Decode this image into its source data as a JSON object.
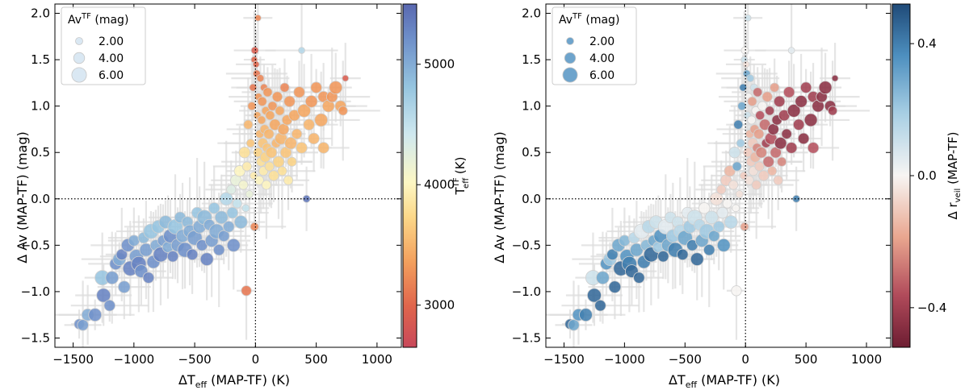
{
  "chart_data": [
    {
      "type": "scatter",
      "panel": "left",
      "xlabel": "ΔT",
      "xlabel_sub": "eff",
      "xlabel_tail": " (MAP-TF) (K)",
      "ylabel": "Δ Av (MAP-TF) (mag)",
      "xlim": [
        -1650,
        1200
      ],
      "ylim": [
        -1.6,
        2.1
      ],
      "xticks": [
        -1500,
        -1000,
        -500,
        0,
        500,
        1000
      ],
      "xtick_labels": [
        "−1500",
        "−1000",
        "−500",
        "0",
        "500",
        "1000"
      ],
      "yticks": [
        -1.5,
        -1.0,
        -0.5,
        0.0,
        0.5,
        1.0,
        1.5,
        2.0
      ],
      "ytick_labels": [
        "−1.5",
        "−1.0",
        "−0.5",
        "0.0",
        "0.5",
        "1.0",
        "1.5",
        "2.0"
      ],
      "reference_lines": {
        "x": 0,
        "y": 0,
        "style": "dotted"
      },
      "legend": {
        "title": "Av",
        "title_sup": "TF",
        "title_tail": " (mag)",
        "position": "upper-left",
        "entries": [
          {
            "label": "2.00",
            "av": 2
          },
          {
            "label": "4.00",
            "av": 4
          },
          {
            "label": "6.00",
            "av": 6
          }
        ]
      },
      "colorbar": {
        "label": "T",
        "label_sup": "TF",
        "label_sub": "eff",
        "label_tail": " (K)",
        "colormap": "RdYlBu",
        "range": [
          2650,
          5500
        ],
        "ticks": [
          3000,
          4000,
          5000
        ],
        "tick_labels": [
          "3000",
          "4000",
          "5000"
        ]
      },
      "color_variable": "Teff_TF",
      "point_color": "#d6e6f2",
      "error_bar_color": "#dcdcdc"
    },
    {
      "type": "scatter",
      "panel": "right",
      "xlabel": "ΔT",
      "xlabel_sub": "eff",
      "xlabel_tail": " (MAP-TF) (K)",
      "ylabel": "Δ Av (MAP-TF) (mag)",
      "xlim": [
        -1650,
        1200
      ],
      "ylim": [
        -1.6,
        2.1
      ],
      "xticks": [
        -1500,
        -1000,
        -500,
        0,
        500,
        1000
      ],
      "xtick_labels": [
        "−1500",
        "−1000",
        "−500",
        "0",
        "500",
        "1000"
      ],
      "yticks": [
        -1.5,
        -1.0,
        -0.5,
        0.0,
        0.5,
        1.0,
        1.5,
        2.0
      ],
      "ytick_labels": [
        "−1.5",
        "−1.0",
        "−0.5",
        "0.0",
        "0.5",
        "1.0",
        "1.5",
        "2.0"
      ],
      "reference_lines": {
        "x": 0,
        "y": 0,
        "style": "dotted"
      },
      "legend": {
        "title": "Av",
        "title_sup": "TF",
        "title_tail": " (mag)",
        "position": "upper-left",
        "entries": [
          {
            "label": "2.00",
            "av": 2
          },
          {
            "label": "4.00",
            "av": 4
          },
          {
            "label": "6.00",
            "av": 6
          }
        ]
      },
      "colorbar": {
        "label": "Δ r",
        "label_sub": "veil",
        "label_tail": " (MAP-TF)",
        "colormap": "RdBu",
        "range": [
          -0.52,
          0.52
        ],
        "ticks": [
          -0.4,
          0.0,
          0.4
        ],
        "tick_labels": [
          "−0.4",
          "0.0",
          "0.4"
        ]
      },
      "color_variable": "delta_r_veil",
      "point_color": "#5e9ac7",
      "error_bar_color": "#dcdcdc"
    }
  ],
  "points": [
    {
      "dT": -1450,
      "dAv": -1.35,
      "av": 3.5,
      "teff": 5200,
      "dr": 0.45
    },
    {
      "dT": -1420,
      "dAv": -1.36,
      "av": 4.0,
      "teff": 5100,
      "dr": 0.3
    },
    {
      "dT": -1380,
      "dAv": -1.25,
      "av": 4.5,
      "teff": 5000,
      "dr": 0.35
    },
    {
      "dT": -1320,
      "dAv": -1.25,
      "av": 5.0,
      "teff": 5200,
      "dr": 0.4
    },
    {
      "dT": -1260,
      "dAv": -0.85,
      "av": 6.0,
      "teff": 4800,
      "dr": 0.1
    },
    {
      "dT": -1250,
      "dAv": -1.04,
      "av": 5.5,
      "teff": 5300,
      "dr": 0.45
    },
    {
      "dT": -1200,
      "dAv": -1.15,
      "av": 4.0,
      "teff": 5200,
      "dr": 0.45
    },
    {
      "dT": -1180,
      "dAv": -0.85,
      "av": 5.0,
      "teff": 5100,
      "dr": 0.3
    },
    {
      "dT": -1150,
      "dAv": -0.7,
      "av": 4.5,
      "teff": 5200,
      "dr": 0.35
    },
    {
      "dT": -1120,
      "dAv": -0.65,
      "av": 5.0,
      "teff": 5000,
      "dr": 0.2
    },
    {
      "dT": -1100,
      "dAv": -0.6,
      "av": 4.0,
      "teff": 5300,
      "dr": 0.4
    },
    {
      "dT": -1080,
      "dAv": -0.95,
      "av": 4.5,
      "teff": 5100,
      "dr": 0.45
    },
    {
      "dT": -1050,
      "dAv": -0.5,
      "av": 5.0,
      "teff": 5200,
      "dr": 0.3
    },
    {
      "dT": -1030,
      "dAv": -0.75,
      "av": 6.0,
      "teff": 5300,
      "dr": 0.45
    },
    {
      "dT": -1000,
      "dAv": -0.45,
      "av": 4.0,
      "teff": 5000,
      "dr": 0.25
    },
    {
      "dT": -980,
      "dAv": -0.62,
      "av": 5.5,
      "teff": 5100,
      "dr": 0.35
    },
    {
      "dT": -960,
      "dAv": -0.7,
      "av": 6.0,
      "teff": 5300,
      "dr": 0.4
    },
    {
      "dT": -940,
      "dAv": -0.78,
      "av": 5.0,
      "teff": 5200,
      "dr": 0.45
    },
    {
      "dT": -920,
      "dAv": -0.42,
      "av": 4.0,
      "teff": 4900,
      "dr": 0.15
    },
    {
      "dT": -900,
      "dAv": -0.55,
      "av": 5.0,
      "teff": 5100,
      "dr": 0.3
    },
    {
      "dT": -880,
      "dAv": -0.85,
      "av": 4.0,
      "teff": 5300,
      "dr": 0.45
    },
    {
      "dT": -860,
      "dAv": -0.35,
      "av": 6.0,
      "teff": 4800,
      "dr": 0.05
    },
    {
      "dT": -840,
      "dAv": -0.68,
      "av": 5.0,
      "teff": 5200,
      "dr": 0.4
    },
    {
      "dT": -820,
      "dAv": -0.5,
      "av": 4.0,
      "teff": 5000,
      "dr": 0.25
    },
    {
      "dT": -800,
      "dAv": -0.3,
      "av": 5.0,
      "teff": 4800,
      "dr": 0.15
    },
    {
      "dT": -780,
      "dAv": -0.6,
      "av": 6.0,
      "teff": 5300,
      "dr": 0.45
    },
    {
      "dT": -760,
      "dAv": -0.45,
      "av": 4.0,
      "teff": 5100,
      "dr": 0.3
    },
    {
      "dT": -740,
      "dAv": -0.25,
      "av": 5.0,
      "teff": 4900,
      "dr": 0.1
    },
    {
      "dT": -720,
      "dAv": -0.52,
      "av": 4.0,
      "teff": 5000,
      "dr": 0.2
    },
    {
      "dT": -700,
      "dAv": -0.4,
      "av": 5.5,
      "teff": 5200,
      "dr": 0.35
    },
    {
      "dT": -680,
      "dAv": -0.62,
      "av": 4.0,
      "teff": 5300,
      "dr": 0.45
    },
    {
      "dT": -660,
      "dAv": -0.3,
      "av": 6.0,
      "teff": 4800,
      "dr": 0.05
    },
    {
      "dT": -640,
      "dAv": -0.5,
      "av": 5.0,
      "teff": 5100,
      "dr": 0.3
    },
    {
      "dT": -620,
      "dAv": -0.2,
      "av": 4.0,
      "teff": 4900,
      "dr": 0.1
    },
    {
      "dT": -600,
      "dAv": -0.4,
      "av": 5.0,
      "teff": 5000,
      "dr": 0.2
    },
    {
      "dT": -580,
      "dAv": -0.55,
      "av": 6.0,
      "teff": 5200,
      "dr": 0.4
    },
    {
      "dT": -560,
      "dAv": -0.25,
      "av": 4.0,
      "teff": 4900,
      "dr": 0.1
    },
    {
      "dT": -540,
      "dAv": -0.35,
      "av": 5.0,
      "teff": 5000,
      "dr": 0.15
    },
    {
      "dT": -520,
      "dAv": -0.6,
      "av": 4.0,
      "teff": 5300,
      "dr": 0.45
    },
    {
      "dT": -500,
      "dAv": -0.42,
      "av": 6.0,
      "teff": 5100,
      "dr": 0.3
    },
    {
      "dT": -480,
      "dAv": -0.15,
      "av": 4.0,
      "teff": 4800,
      "dr": 0.05
    },
    {
      "dT": -460,
      "dAv": -0.3,
      "av": 5.0,
      "teff": 5000,
      "dr": 0.2
    },
    {
      "dT": -440,
      "dAv": -0.5,
      "av": 4.0,
      "teff": 5200,
      "dr": 0.4
    },
    {
      "dT": -420,
      "dAv": -0.2,
      "av": 6.0,
      "teff": 4900,
      "dr": 0.1
    },
    {
      "dT": -400,
      "dAv": -0.65,
      "av": 5.0,
      "teff": 5300,
      "dr": 0.45
    },
    {
      "dT": -380,
      "dAv": -0.28,
      "av": 4.0,
      "teff": 5000,
      "dr": 0.15
    },
    {
      "dT": -360,
      "dAv": -0.45,
      "av": 5.0,
      "teff": 5100,
      "dr": 0.3
    },
    {
      "dT": -340,
      "dAv": -0.1,
      "av": 4.0,
      "teff": 4800,
      "dr": 0.0
    },
    {
      "dT": -320,
      "dAv": -0.35,
      "av": 6.0,
      "teff": 5000,
      "dr": 0.2
    },
    {
      "dT": -300,
      "dAv": -0.55,
      "av": 4.0,
      "teff": 5200,
      "dr": 0.4
    },
    {
      "dT": -280,
      "dAv": -0.2,
      "av": 5.0,
      "teff": 4900,
      "dr": 0.1
    },
    {
      "dT": -260,
      "dAv": -0.4,
      "av": 4.0,
      "teff": 5100,
      "dr": 0.3
    },
    {
      "dT": -240,
      "dAv": 0.0,
      "av": 5.0,
      "teff": 4600,
      "dr": -0.05
    },
    {
      "dT": -220,
      "dAv": -0.3,
      "av": 4.0,
      "teff": 5000,
      "dr": 0.2
    },
    {
      "dT": -200,
      "dAv": 0.1,
      "av": 3.0,
      "teff": 4300,
      "dr": -0.1
    },
    {
      "dT": -190,
      "dAv": -0.15,
      "av": 4.0,
      "teff": 4800,
      "dr": 0.05
    },
    {
      "dT": -180,
      "dAv": -0.5,
      "av": 5.0,
      "teff": 5200,
      "dr": 0.35
    },
    {
      "dT": -160,
      "dAv": 0.2,
      "av": 4.0,
      "teff": 4200,
      "dr": -0.1
    },
    {
      "dT": -150,
      "dAv": -0.05,
      "av": 3.0,
      "teff": 4500,
      "dr": 0.0
    },
    {
      "dT": -130,
      "dAv": 0.3,
      "av": 4.0,
      "teff": 4000,
      "dr": -0.15
    },
    {
      "dT": -120,
      "dAv": -0.25,
      "av": 5.0,
      "teff": 4900,
      "dr": 0.15
    },
    {
      "dT": -100,
      "dAv": 0.15,
      "av": 3.0,
      "teff": 4100,
      "dr": -0.05
    },
    {
      "dT": -90,
      "dAv": 0.5,
      "av": 4.0,
      "teff": 3800,
      "dr": 0.1
    },
    {
      "dT": -80,
      "dAv": -0.1,
      "av": 2.0,
      "teff": 4500,
      "dr": 0.0
    },
    {
      "dT": -70,
      "dAv": 0.35,
      "av": 3.0,
      "teff": 3900,
      "dr": 0.3
    },
    {
      "dT": -60,
      "dAv": 0.8,
      "av": 3.0,
      "teff": 3500,
      "dr": 0.4
    },
    {
      "dT": -50,
      "dAv": 0.05,
      "av": 2.0,
      "teff": 4200,
      "dr": -0.05
    },
    {
      "dT": -40,
      "dAv": 0.6,
      "av": 2.5,
      "teff": 3600,
      "dr": 0.2
    },
    {
      "dT": -30,
      "dAv": 1.0,
      "av": 2.5,
      "teff": 3300,
      "dr": 0.3
    },
    {
      "dT": -20,
      "dAv": 1.2,
      "av": 2.0,
      "teff": 3100,
      "dr": 0.4
    },
    {
      "dT": -15,
      "dAv": 0.25,
      "av": 2.0,
      "teff": 3900,
      "dr": -0.1
    },
    {
      "dT": -10,
      "dAv": 1.5,
      "av": 1.5,
      "teff": 3000,
      "dr": 0.1
    },
    {
      "dT": -5,
      "dAv": 1.6,
      "av": 2.0,
      "teff": 2900,
      "dr": 0.0
    },
    {
      "dT": -8,
      "dAv": -0.3,
      "av": 2.5,
      "teff": 3200,
      "dr": -0.2
    },
    {
      "dT": -75,
      "dAv": -0.99,
      "av": 3.5,
      "teff": 3100,
      "dr": 0.0
    },
    {
      "dT": 5,
      "dAv": 1.45,
      "av": 1.5,
      "teff": 3000,
      "dr": -0.05
    },
    {
      "dT": 10,
      "dAv": 1.35,
      "av": 2.0,
      "teff": 3100,
      "dr": 0.3
    },
    {
      "dT": 15,
      "dAv": 0.9,
      "av": 2.0,
      "teff": 3400,
      "dr": 0.1
    },
    {
      "dT": 20,
      "dAv": 0.5,
      "av": 3.0,
      "teff": 3700,
      "dr": -0.1
    },
    {
      "dT": 25,
      "dAv": 1.1,
      "av": 2.0,
      "teff": 3300,
      "dr": 0.0
    },
    {
      "dT": 30,
      "dAv": 0.2,
      "av": 3.0,
      "teff": 4000,
      "dr": -0.05
    },
    {
      "dT": 35,
      "dAv": 0.7,
      "av": 2.5,
      "teff": 3500,
      "dr": -0.15
    },
    {
      "dT": 40,
      "dAv": 1.3,
      "av": 2.0,
      "teff": 3200,
      "dr": 0.2
    },
    {
      "dT": 45,
      "dAv": 0.4,
      "av": 3.0,
      "teff": 3800,
      "dr": -0.1
    },
    {
      "dT": 50,
      "dAv": 0.85,
      "av": 2.5,
      "teff": 3400,
      "dr": 0.0
    },
    {
      "dT": 55,
      "dAv": 1.05,
      "av": 3.0,
      "teff": 3300,
      "dr": -0.2
    },
    {
      "dT": 60,
      "dAv": 0.6,
      "av": 3.5,
      "teff": 3600,
      "dr": -0.1
    },
    {
      "dT": 65,
      "dAv": 0.3,
      "av": 3.0,
      "teff": 3900,
      "dr": -0.05
    },
    {
      "dT": 70,
      "dAv": 1.2,
      "av": 2.0,
      "teff": 3200,
      "dr": 0.1
    },
    {
      "dT": 75,
      "dAv": 0.75,
      "av": 3.0,
      "teff": 3500,
      "dr": -0.2
    },
    {
      "dT": 80,
      "dAv": 0.45,
      "av": 3.5,
      "teff": 3700,
      "dr": -0.15
    },
    {
      "dT": 85,
      "dAv": 0.95,
      "av": 2.5,
      "teff": 3400,
      "dr": 0.0
    },
    {
      "dT": 90,
      "dAv": 0.15,
      "av": 3.0,
      "teff": 4000,
      "dr": -0.1
    },
    {
      "dT": 95,
      "dAv": 0.55,
      "av": 3.0,
      "teff": 3600,
      "dr": -0.25
    },
    {
      "dT": 100,
      "dAv": 1.15,
      "av": 3.0,
      "teff": 3300,
      "dr": -0.3
    },
    {
      "dT": 110,
      "dAv": 0.7,
      "av": 3.5,
      "teff": 3500,
      "dr": -0.2
    },
    {
      "dT": 115,
      "dAv": 0.35,
      "av": 3.0,
      "teff": 3800,
      "dr": -0.1
    },
    {
      "dT": 120,
      "dAv": 0.9,
      "av": 3.0,
      "teff": 3400,
      "dr": -0.35
    },
    {
      "dT": 130,
      "dAv": 0.5,
      "av": 4.0,
      "teff": 3600,
      "dr": -0.25
    },
    {
      "dT": 140,
      "dAv": 1.0,
      "av": 3.0,
      "teff": 3300,
      "dr": 0.0
    },
    {
      "dT": 150,
      "dAv": 0.25,
      "av": 3.5,
      "teff": 3800,
      "dr": -0.1
    },
    {
      "dT": 160,
      "dAv": 0.8,
      "av": 4.0,
      "teff": 3400,
      "dr": -0.3
    },
    {
      "dT": 170,
      "dAv": 0.6,
      "av": 3.0,
      "teff": 3500,
      "dr": -0.4
    },
    {
      "dT": 180,
      "dAv": 1.1,
      "av": 3.5,
      "teff": 3300,
      "dr": -0.2
    },
    {
      "dT": 190,
      "dAv": 0.4,
      "av": 4.0,
      "teff": 3700,
      "dr": -0.3
    },
    {
      "dT": 200,
      "dAv": 0.95,
      "av": 3.0,
      "teff": 3400,
      "dr": -0.4
    },
    {
      "dT": 210,
      "dAv": 0.65,
      "av": 4.5,
      "teff": 3500,
      "dr": -0.35
    },
    {
      "dT": 220,
      "dAv": 0.3,
      "av": 3.0,
      "teff": 3800,
      "dr": -0.15
    },
    {
      "dT": 230,
      "dAv": 0.75,
      "av": 4.0,
      "teff": 3400,
      "dr": -0.45
    },
    {
      "dT": 240,
      "dAv": 1.2,
      "av": 3.0,
      "teff": 3200,
      "dr": -0.2
    },
    {
      "dT": 250,
      "dAv": 0.5,
      "av": 4.0,
      "teff": 3600,
      "dr": -0.3
    },
    {
      "dT": 260,
      "dAv": 0.85,
      "av": 3.5,
      "teff": 3400,
      "dr": -0.45
    },
    {
      "dT": 270,
      "dAv": 0.2,
      "av": 3.0,
      "teff": 3900,
      "dr": -0.1
    },
    {
      "dT": 280,
      "dAv": 1.05,
      "av": 4.0,
      "teff": 3300,
      "dr": -0.4
    },
    {
      "dT": 290,
      "dAv": 0.6,
      "av": 4.5,
      "teff": 3500,
      "dr": -0.45
    },
    {
      "dT": 300,
      "dAv": 0.4,
      "av": 3.0,
      "teff": 3700,
      "dr": -0.25
    },
    {
      "dT": 320,
      "dAv": 0.9,
      "av": 4.0,
      "teff": 3400,
      "dr": -0.4
    },
    {
      "dT": 340,
      "dAv": 0.7,
      "av": 3.5,
      "teff": 3500,
      "dr": -0.45
    },
    {
      "dT": 360,
      "dAv": 1.15,
      "av": 4.0,
      "teff": 3300,
      "dr": -0.35
    },
    {
      "dT": 380,
      "dAv": 0.55,
      "av": 4.0,
      "teff": 3600,
      "dr": -0.4
    },
    {
      "dT": 400,
      "dAv": 0.95,
      "av": 5.0,
      "teff": 3400,
      "dr": -0.45
    },
    {
      "dT": 420,
      "dAv": 0.0,
      "av": 2.0,
      "teff": 5400,
      "dr": 0.4
    },
    {
      "dT": 440,
      "dAv": 0.8,
      "av": 4.0,
      "teff": 3500,
      "dr": -0.4
    },
    {
      "dT": 460,
      "dAv": 1.05,
      "av": 4.5,
      "teff": 3300,
      "dr": -0.45
    },
    {
      "dT": 480,
      "dAv": 0.65,
      "av": 4.0,
      "teff": 3500,
      "dr": -0.45
    },
    {
      "dT": 500,
      "dAv": 1.2,
      "av": 4.0,
      "teff": 3300,
      "dr": -0.4
    },
    {
      "dT": 540,
      "dAv": 0.85,
      "av": 5.0,
      "teff": 3400,
      "dr": -0.45
    },
    {
      "dT": 560,
      "dAv": 1.1,
      "av": 4.0,
      "teff": 3300,
      "dr": -0.4
    },
    {
      "dT": 600,
      "dAv": 1.0,
      "av": 4.5,
      "teff": 3400,
      "dr": -0.45
    },
    {
      "dT": 630,
      "dAv": 1.1,
      "av": 4.0,
      "teff": 3300,
      "dr": -0.45
    },
    {
      "dT": 660,
      "dAv": 1.2,
      "av": 5.0,
      "teff": 3300,
      "dr": -0.45
    },
    {
      "dT": 700,
      "dAv": 1.0,
      "av": 4.0,
      "teff": 3400,
      "dr": -0.45
    },
    {
      "dT": 720,
      "dAv": 0.95,
      "av": 3.0,
      "teff": 3300,
      "dr": -0.4
    },
    {
      "dT": 740,
      "dAv": 1.3,
      "av": 1.5,
      "teff": 2900,
      "dr": -0.45
    },
    {
      "dT": 560,
      "dAv": 0.55,
      "av": 4.0,
      "teff": 3500,
      "dr": -0.35
    },
    {
      "dT": 380,
      "dAv": 1.6,
      "av": 1.5,
      "teff": 4600,
      "dr": 0.05
    },
    {
      "dT": 20,
      "dAv": 1.95,
      "av": 1.5,
      "teff": 3200,
      "dr": 0.1
    }
  ]
}
